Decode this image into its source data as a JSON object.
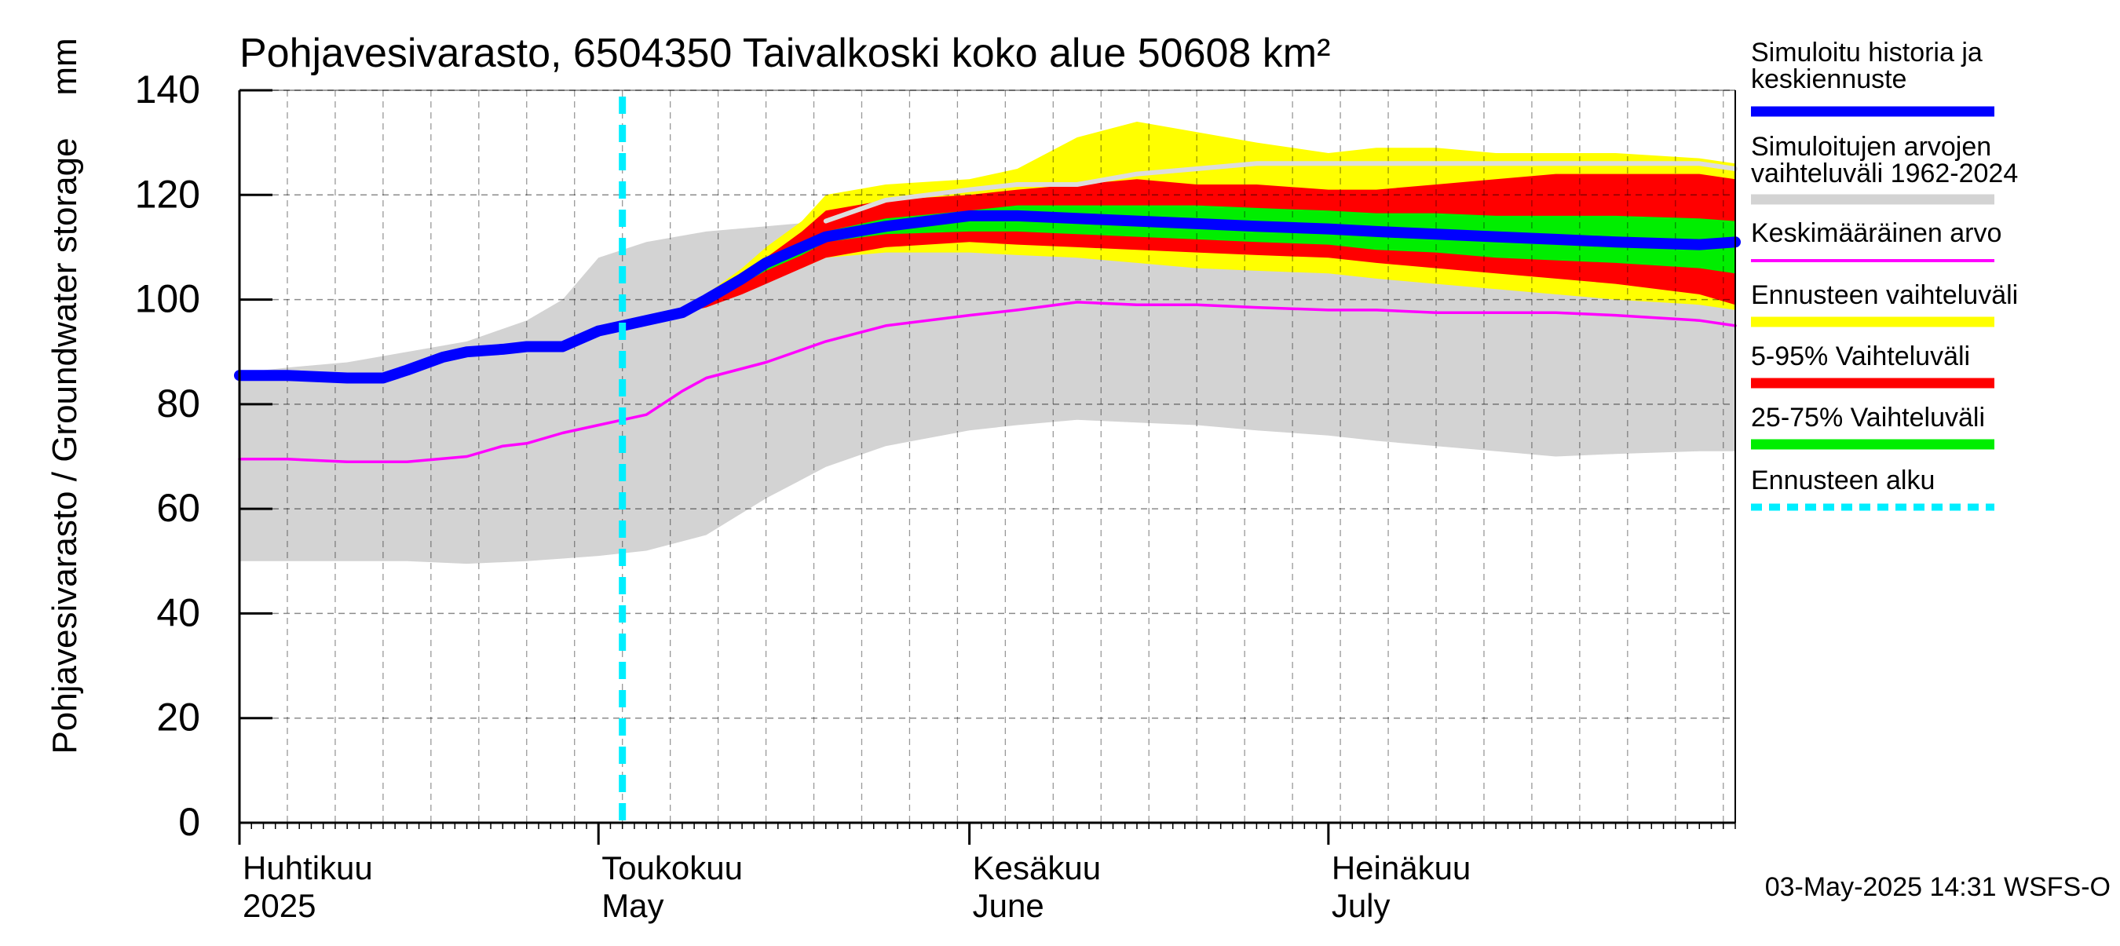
{
  "chart_data": {
    "type": "area",
    "title": "Pohjavesivarasto, 6504350 Taivalkoski koko alue 50608 km²",
    "ylabel": "Pohjavesivarasto / Groundwater storage",
    "yunit": "mm",
    "ylim": [
      0,
      140
    ],
    "yticks": [
      0,
      20,
      40,
      60,
      80,
      100,
      120,
      140
    ],
    "xlim": [
      "2025-04-01",
      "2025-08-04"
    ],
    "month_ticks": [
      {
        "date": "2025-04-01",
        "fi": "Huhtikuu",
        "en": "2025"
      },
      {
        "date": "2025-05-01",
        "fi": "Toukokuu",
        "en": "May"
      },
      {
        "date": "2025-06-01",
        "fi": "Kesäkuu",
        "en": "June"
      },
      {
        "date": "2025-07-01",
        "fi": "Heinäkuu",
        "en": "July"
      }
    ],
    "forecast_start": "2025-05-03",
    "grid": true,
    "legend_position": "right",
    "timestamp": "03-May-2025 14:31 WSFS-O",
    "series": [
      {
        "name": "Simuloitujen arvojen vaihteluväli 1962-2024",
        "kind": "band",
        "color": "#d3d3d3",
        "x": [
          "2025-04-01",
          "2025-04-05",
          "2025-04-10",
          "2025-04-15",
          "2025-04-20",
          "2025-04-25",
          "2025-04-28",
          "2025-05-01",
          "2025-05-05",
          "2025-05-10",
          "2025-05-15",
          "2025-05-20",
          "2025-05-25",
          "2025-06-01",
          "2025-06-05",
          "2025-06-10",
          "2025-06-15",
          "2025-06-20",
          "2025-06-25",
          "2025-07-01",
          "2025-07-05",
          "2025-07-10",
          "2025-07-15",
          "2025-07-20",
          "2025-07-25",
          "2025-08-01",
          "2025-08-04"
        ],
        "low": [
          50,
          50,
          50,
          50,
          49.5,
          50,
          50.5,
          51,
          52,
          55,
          62,
          68,
          72,
          75,
          76,
          77,
          76.5,
          76,
          75,
          74,
          73,
          72,
          71,
          70,
          70.5,
          71,
          71
        ],
        "high": [
          86,
          87,
          88,
          90,
          92,
          96,
          100,
          108,
          111,
          113,
          114,
          115,
          116,
          117,
          118,
          120,
          121,
          122,
          123,
          123,
          123,
          123,
          122,
          122,
          123,
          124,
          124
        ]
      },
      {
        "name": "Ennusteen vaihteluväli",
        "kind": "band",
        "color": "#ffff00",
        "x": [
          "2025-05-03",
          "2025-05-05",
          "2025-05-08",
          "2025-05-10",
          "2025-05-13",
          "2025-05-15",
          "2025-05-18",
          "2025-05-20",
          "2025-05-25",
          "2025-06-01",
          "2025-06-05",
          "2025-06-10",
          "2025-06-15",
          "2025-06-20",
          "2025-06-25",
          "2025-07-01",
          "2025-07-05",
          "2025-07-10",
          "2025-07-15",
          "2025-07-20",
          "2025-07-25",
          "2025-08-01",
          "2025-08-04"
        ],
        "low": [
          96,
          96.5,
          97.5,
          99,
          102,
          104,
          106,
          108,
          109,
          109,
          108.5,
          108,
          107,
          106,
          105.5,
          105,
          104,
          103,
          102,
          101,
          100,
          99,
          98
        ],
        "high": [
          96,
          96.5,
          97.5,
          101,
          106,
          110,
          115,
          120,
          122,
          123,
          125,
          131,
          134,
          132,
          130,
          128,
          129,
          129,
          128,
          128,
          128,
          127,
          126
        ]
      },
      {
        "name": "5-95% Vaihteluväli",
        "kind": "band",
        "color": "#ff0000",
        "x": [
          "2025-05-03",
          "2025-05-05",
          "2025-05-08",
          "2025-05-10",
          "2025-05-13",
          "2025-05-15",
          "2025-05-18",
          "2025-05-20",
          "2025-05-25",
          "2025-06-01",
          "2025-06-05",
          "2025-06-10",
          "2025-06-15",
          "2025-06-20",
          "2025-06-25",
          "2025-07-01",
          "2025-07-05",
          "2025-07-10",
          "2025-07-15",
          "2025-07-20",
          "2025-07-25",
          "2025-08-01",
          "2025-08-04"
        ],
        "low": [
          96,
          96.5,
          97.5,
          98.5,
          101,
          103,
          106,
          108,
          110,
          111,
          110.5,
          110,
          109.5,
          109,
          108.5,
          108,
          107,
          106,
          105,
          104,
          103,
          101,
          99
        ],
        "high": [
          96,
          96.5,
          97.5,
          100.5,
          105,
          108,
          113,
          117,
          119,
          120,
          121,
          122,
          123,
          122,
          122,
          121,
          121,
          122,
          123,
          124,
          124,
          124,
          123
        ]
      },
      {
        "name": "25-75% Vaihteluväli",
        "kind": "band",
        "color": "#00ee00",
        "x": [
          "2025-05-03",
          "2025-05-05",
          "2025-05-08",
          "2025-05-10",
          "2025-05-13",
          "2025-05-15",
          "2025-05-18",
          "2025-05-20",
          "2025-05-25",
          "2025-06-01",
          "2025-06-05",
          "2025-06-10",
          "2025-06-15",
          "2025-06-20",
          "2025-06-25",
          "2025-07-01",
          "2025-07-05",
          "2025-07-10",
          "2025-07-15",
          "2025-07-20",
          "2025-07-25",
          "2025-08-01",
          "2025-08-04"
        ],
        "low": [
          96,
          96.5,
          97.5,
          99.5,
          103,
          105.5,
          108.5,
          111,
          112.5,
          113,
          113,
          112.5,
          112,
          111.5,
          111,
          110.5,
          109.5,
          109,
          108,
          107.5,
          107,
          106,
          105
        ],
        "high": [
          96,
          96.5,
          97.5,
          100,
          104,
          107,
          110.5,
          113,
          115.5,
          117,
          118,
          118,
          118,
          118,
          117.5,
          117,
          116.5,
          116.5,
          116,
          116,
          116,
          115.5,
          115
        ]
      },
      {
        "name": "Keskimääräinen arvo",
        "kind": "line",
        "color": "#ff00ff",
        "x": [
          "2025-04-01",
          "2025-04-05",
          "2025-04-10",
          "2025-04-15",
          "2025-04-20",
          "2025-04-23",
          "2025-04-25",
          "2025-04-28",
          "2025-05-01",
          "2025-05-05",
          "2025-05-08",
          "2025-05-10",
          "2025-05-15",
          "2025-05-20",
          "2025-05-25",
          "2025-06-01",
          "2025-06-05",
          "2025-06-10",
          "2025-06-15",
          "2025-06-20",
          "2025-06-25",
          "2025-07-01",
          "2025-07-05",
          "2025-07-10",
          "2025-07-15",
          "2025-07-20",
          "2025-07-25",
          "2025-08-01",
          "2025-08-04"
        ],
        "y": [
          69.5,
          69.5,
          69,
          69,
          70,
          72,
          72.5,
          74.5,
          76,
          78,
          82.5,
          85,
          88,
          92,
          95,
          97,
          98,
          99.5,
          99,
          99,
          98.5,
          98,
          98,
          97.5,
          97.5,
          97.5,
          97,
          96,
          95
        ]
      },
      {
        "name": "Simuloitu historia ja keskiennuste",
        "kind": "line",
        "color": "#0000ff",
        "x": [
          "2025-04-01",
          "2025-04-05",
          "2025-04-10",
          "2025-04-13",
          "2025-04-15",
          "2025-04-18",
          "2025-04-20",
          "2025-04-23",
          "2025-04-25",
          "2025-04-28",
          "2025-05-01",
          "2025-05-03",
          "2025-05-05",
          "2025-05-08",
          "2025-05-10",
          "2025-05-13",
          "2025-05-15",
          "2025-05-18",
          "2025-05-20",
          "2025-05-25",
          "2025-06-01",
          "2025-06-05",
          "2025-06-10",
          "2025-06-15",
          "2025-06-20",
          "2025-06-25",
          "2025-07-01",
          "2025-07-05",
          "2025-07-10",
          "2025-07-15",
          "2025-07-20",
          "2025-07-25",
          "2025-08-01",
          "2025-08-04"
        ],
        "y": [
          85.5,
          85.5,
          85,
          85,
          86.5,
          89,
          90,
          90.5,
          91,
          91,
          94,
          95,
          96,
          97.5,
          100,
          104,
          107,
          110,
          112,
          114,
          116,
          116,
          115.5,
          115,
          114.5,
          114,
          113.5,
          113,
          112.5,
          112,
          111.5,
          111,
          110.5,
          111
        ]
      },
      {
        "name": "Simuloitujen arvojen vaihteluväli 1962-2024 (max)",
        "kind": "thinline",
        "color": "#dddddd",
        "x": [
          "2025-05-20",
          "2025-05-25",
          "2025-06-01",
          "2025-06-05",
          "2025-06-10",
          "2025-06-15",
          "2025-06-20",
          "2025-06-25",
          "2025-07-01",
          "2025-07-05",
          "2025-07-10",
          "2025-07-15",
          "2025-07-20",
          "2025-07-25",
          "2025-08-01",
          "2025-08-04"
        ],
        "y": [
          115,
          119,
          121,
          122,
          122,
          124,
          125,
          126,
          126,
          126,
          126,
          126,
          126,
          126,
          126,
          125
        ]
      }
    ],
    "legend": [
      {
        "label": "Simuloitu historia ja keskiennuste",
        "color": "#0000ff",
        "style": "thick"
      },
      {
        "label": "Simuloitujen arvojen vaihteluväli 1962-2024",
        "color": "#d3d3d3",
        "style": "thick"
      },
      {
        "label": "Keskimääräinen arvo",
        "color": "#ff00ff",
        "style": "thin"
      },
      {
        "label": "Ennusteen vaihteluväli",
        "color": "#ffff00",
        "style": "thick"
      },
      {
        "label": "5-95% Vaihteluväli",
        "color": "#ff0000",
        "style": "thick"
      },
      {
        "label": "25-75% Vaihteluväli",
        "color": "#00ee00",
        "style": "thick"
      },
      {
        "label": "Ennusteen alku",
        "color": "#00eeff",
        "style": "dashed"
      }
    ]
  }
}
